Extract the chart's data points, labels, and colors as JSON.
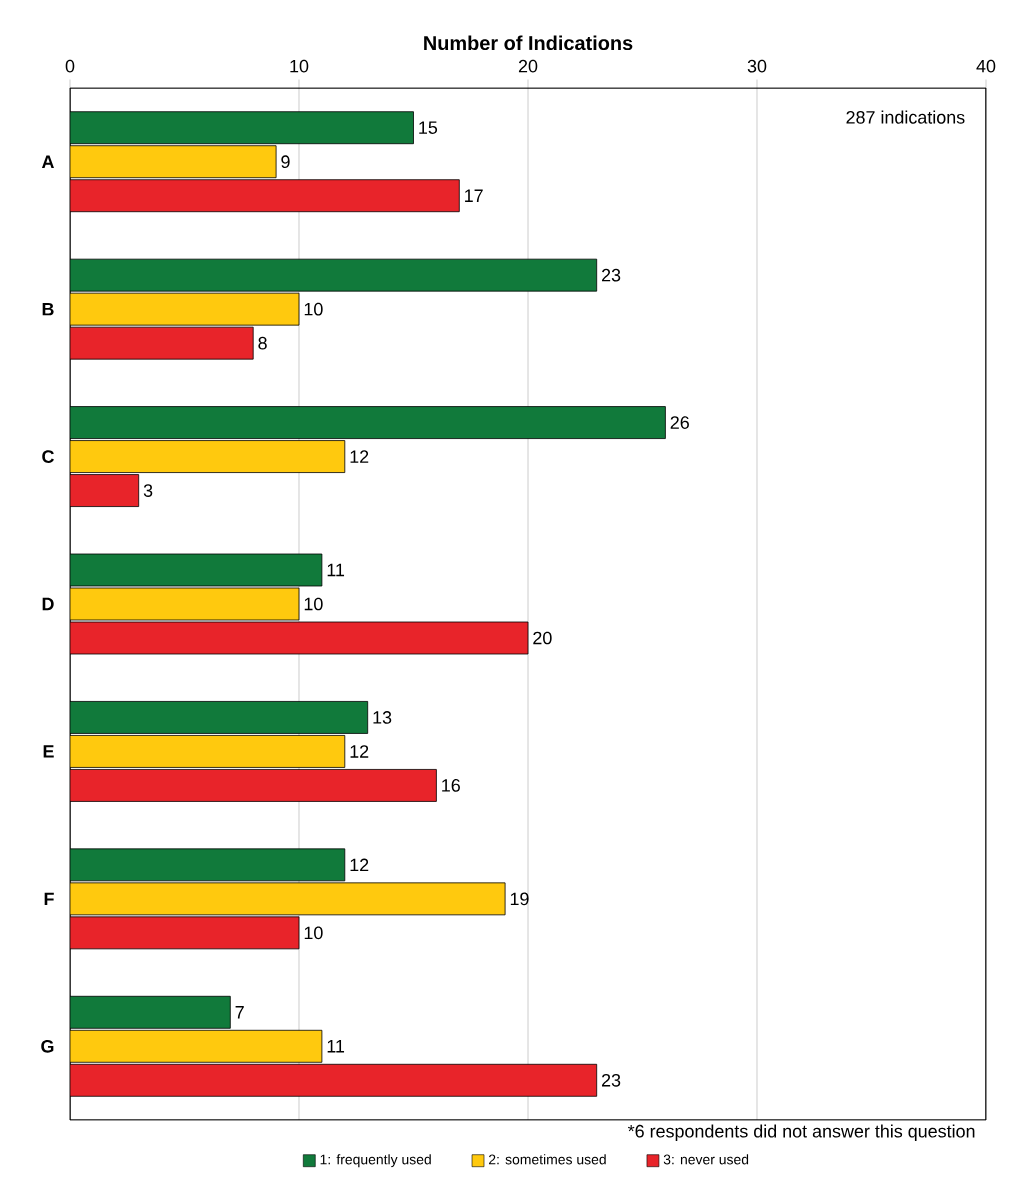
{
  "chart_data": {
    "type": "bar",
    "orientation": "horizontal",
    "xlabel": "Number of Indications",
    "categories": [
      "A",
      "B",
      "C",
      "D",
      "E",
      "F",
      "G"
    ],
    "series": [
      {
        "name": "1: frequently used",
        "color": "#117a3b",
        "values": [
          15,
          23,
          26,
          11,
          13,
          12,
          7
        ]
      },
      {
        "name": "2: sometimes used",
        "color": "#ffc90e",
        "values": [
          9,
          10,
          12,
          10,
          12,
          19,
          11
        ]
      },
      {
        "name": "3: never used",
        "color": "#e8242a",
        "values": [
          17,
          8,
          3,
          20,
          16,
          10,
          23
        ]
      }
    ],
    "xlim": [
      0,
      40
    ],
    "xticks": [
      0,
      10,
      20,
      30,
      40
    ],
    "grid": "x",
    "legend": "bottom",
    "data_labels": true,
    "annotations": [
      "287 indications",
      "*6 respondents did not answer this question"
    ]
  }
}
